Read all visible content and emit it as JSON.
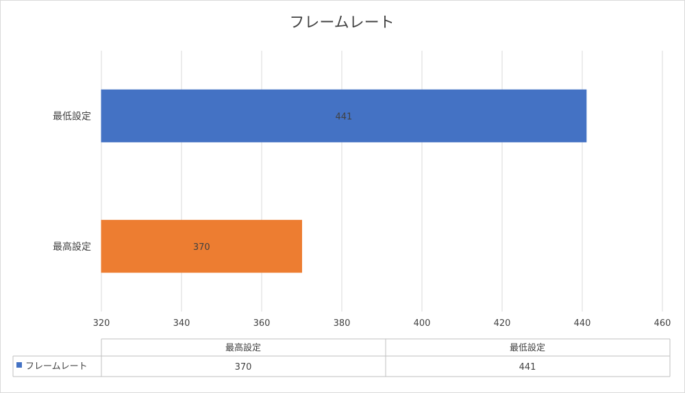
{
  "chart_data": {
    "type": "bar",
    "orientation": "horizontal",
    "title": "フレームレート",
    "categories": [
      "最高設定",
      "最低設定"
    ],
    "series": [
      {
        "name": "フレームレート",
        "values": [
          370,
          441
        ],
        "point_colors": [
          "#ED7D31",
          "#4472C4"
        ]
      }
    ],
    "xlim": [
      320,
      460
    ],
    "x_ticks": [
      320,
      340,
      360,
      380,
      400,
      420,
      440,
      460
    ],
    "grid": true,
    "data_labels": true,
    "legend_placement": "data-table-below"
  },
  "data_table": {
    "headers": [
      "最高設定",
      "最低設定"
    ],
    "series_label": "フレームレート",
    "values": [
      "370",
      "441"
    ]
  },
  "colors": {
    "legend_key": "#4472C4",
    "gridline": "#d9d9d9",
    "text": "#404040"
  }
}
